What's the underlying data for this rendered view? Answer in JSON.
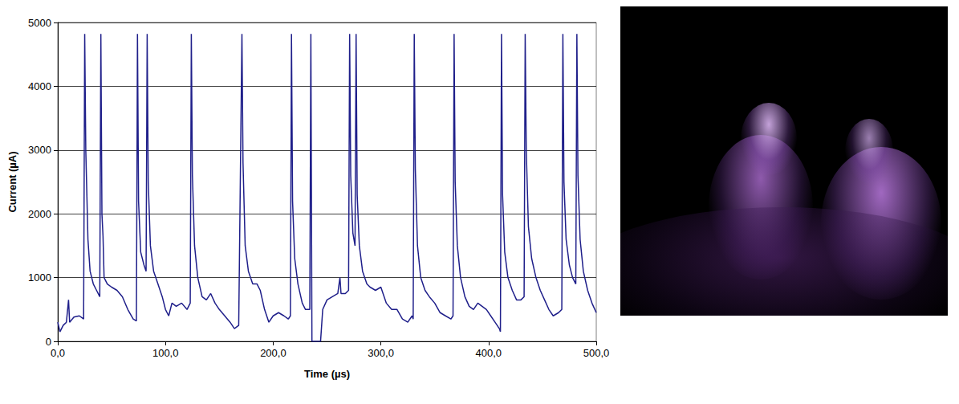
{
  "chart_data": {
    "type": "line",
    "x_label": "Time (µs)",
    "y_label": "Current (µA)",
    "xlim": [
      0,
      500
    ],
    "xticks": [
      {
        "value": 0,
        "label": "0,0"
      },
      {
        "value": 100,
        "label": "100,0"
      },
      {
        "value": 200,
        "label": "200,0"
      },
      {
        "value": 300,
        "label": "300,0"
      },
      {
        "value": 400,
        "label": "400,0"
      },
      {
        "value": 500,
        "label": "500,0"
      }
    ],
    "ylim": [
      0,
      5000
    ],
    "yticks": [
      0,
      1000,
      2000,
      3000,
      4000,
      5000
    ],
    "grid": true,
    "color": "#1f1f8a",
    "x": [
      0,
      2,
      5,
      8,
      10,
      11,
      15,
      20,
      24,
      25,
      26,
      28,
      30,
      33,
      36,
      39,
      40,
      41,
      42,
      43,
      46,
      50,
      55,
      60,
      65,
      70,
      73,
      74,
      75,
      77,
      80,
      82,
      83,
      84,
      86,
      89,
      93,
      97,
      100,
      103,
      106,
      110,
      115,
      120,
      123,
      124,
      125,
      127,
      130,
      134,
      138,
      142,
      146,
      150,
      155,
      160,
      164,
      168,
      171,
      172,
      174,
      177,
      181,
      185,
      188,
      192,
      196,
      200,
      205,
      210,
      214,
      216,
      217,
      218,
      220,
      223,
      227,
      230,
      234,
      235,
      236,
      237,
      240,
      244,
      246,
      250,
      255,
      260,
      262,
      263,
      267,
      270,
      271,
      272,
      274,
      276,
      277,
      278,
      280,
      283,
      287,
      290,
      295,
      300,
      305,
      310,
      315,
      320,
      325,
      329,
      330,
      331,
      332,
      334,
      337,
      341,
      345,
      350,
      355,
      360,
      365,
      367,
      368,
      369,
      371,
      374,
      378,
      382,
      386,
      390,
      394,
      398,
      402,
      406,
      410,
      411,
      412,
      413,
      415,
      418,
      422,
      426,
      430,
      433,
      434,
      435,
      437,
      440,
      444,
      448,
      452,
      456,
      460,
      465,
      468,
      469,
      470,
      472,
      475,
      478,
      481,
      482,
      483,
      485,
      488,
      492,
      496,
      500
    ],
    "values": [
      300,
      150,
      250,
      300,
      650,
      300,
      380,
      400,
      350,
      4820,
      3000,
      1600,
      1100,
      900,
      800,
      700,
      4820,
      2000,
      1650,
      1000,
      900,
      850,
      800,
      700,
      500,
      350,
      320,
      4820,
      2200,
      1400,
      1200,
      1100,
      4820,
      2500,
      1500,
      1100,
      900,
      700,
      500,
      400,
      600,
      550,
      600,
      500,
      600,
      4820,
      2600,
      1500,
      1000,
      700,
      650,
      750,
      600,
      500,
      400,
      300,
      200,
      250,
      4820,
      2800,
      1500,
      1100,
      900,
      900,
      800,
      500,
      300,
      400,
      450,
      400,
      350,
      400,
      4820,
      2200,
      1300,
      900,
      600,
      500,
      500,
      4820,
      0,
      0,
      0,
      0,
      500,
      650,
      700,
      750,
      1000,
      750,
      750,
      800,
      4820,
      2600,
      1700,
      1500,
      4820,
      2300,
      1500,
      1100,
      900,
      850,
      800,
      850,
      600,
      500,
      500,
      350,
      300,
      400,
      350,
      4820,
      2700,
      1500,
      1000,
      800,
      700,
      600,
      450,
      400,
      350,
      400,
      4820,
      2500,
      1500,
      1000,
      700,
      550,
      500,
      600,
      550,
      500,
      400,
      300,
      200,
      150,
      4820,
      2300,
      1400,
      1000,
      800,
      650,
      650,
      700,
      4820,
      3000,
      1800,
      1300,
      1000,
      800,
      650,
      500,
      400,
      450,
      500,
      4820,
      2500,
      1600,
      1200,
      1000,
      900,
      4820,
      2600,
      1600,
      1100,
      800,
      600,
      450
    ]
  }
}
